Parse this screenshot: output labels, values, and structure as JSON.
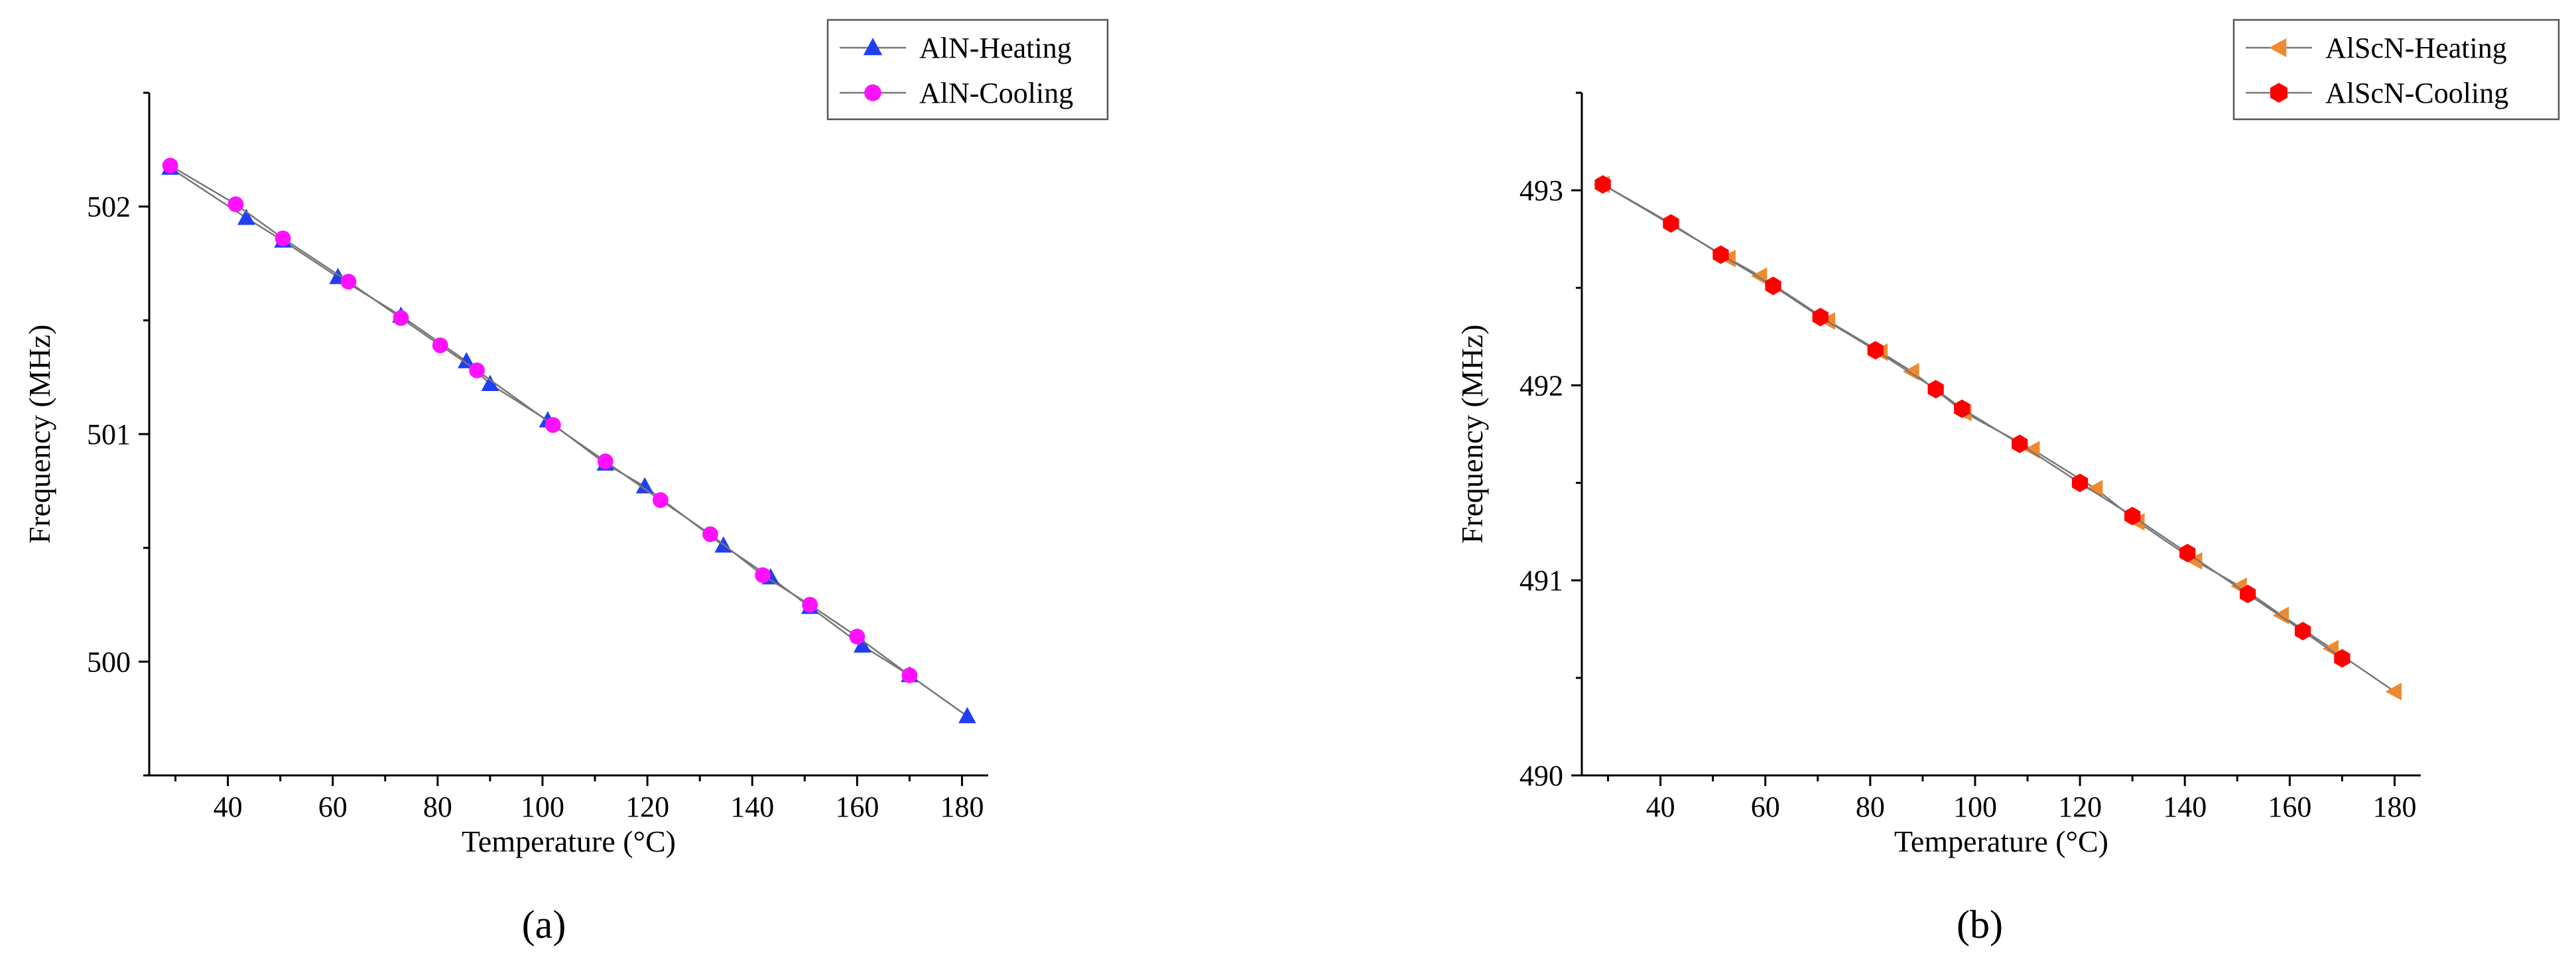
{
  "chart_data": [
    {
      "type": "line",
      "panel_label": "(a)",
      "xlabel": "Temperature (°C)",
      "ylabel": "Frequency (MHz)",
      "xlim": [
        25,
        185
      ],
      "ylim": [
        499.5,
        502.5
      ],
      "xticks": [
        40,
        60,
        80,
        100,
        120,
        140,
        160,
        180
      ],
      "yticks": [
        500,
        501,
        502
      ],
      "grid": false,
      "legend": "top-right",
      "series": [
        {
          "name": "AlN-Heating",
          "marker": "triangle-up",
          "color": "#1f3ff0",
          "x": [
            29,
            43.5,
            50.5,
            61,
            73,
            85.5,
            90,
            101,
            112,
            119.5,
            134.5,
            143.5,
            151,
            161,
            170,
            181
          ],
          "y": [
            502.17,
            501.95,
            501.85,
            501.69,
            501.52,
            501.32,
            501.22,
            501.06,
            500.87,
            500.77,
            500.51,
            500.37,
            500.24,
            500.07,
            499.94,
            499.76
          ]
        },
        {
          "name": "AlN-Cooling",
          "marker": "circle",
          "color": "#ff10ff",
          "x": [
            29,
            41.5,
            50.5,
            63,
            73,
            80.5,
            87.5,
            102,
            112,
            122.5,
            132,
            142,
            151,
            160,
            170
          ],
          "y": [
            502.18,
            502.01,
            501.86,
            501.67,
            501.51,
            501.39,
            501.28,
            501.04,
            500.88,
            500.71,
            500.56,
            500.38,
            500.25,
            500.11,
            499.94
          ]
        }
      ]
    },
    {
      "type": "line",
      "panel_label": "(b)",
      "xlabel": "Temperature (°C)",
      "ylabel": "Frequency (MHz)",
      "xlim": [
        25,
        185
      ],
      "ylim": [
        490,
        493.5
      ],
      "xticks": [
        40,
        60,
        80,
        100,
        120,
        140,
        160,
        180
      ],
      "yticks": [
        490,
        491,
        492,
        493
      ],
      "grid": false,
      "legend": "top-right",
      "series": [
        {
          "name": "AlScN-Heating",
          "marker": "triangle-left",
          "color": "#f08a30",
          "x": [
            29,
            53,
            59,
            72,
            82,
            88,
            98,
            111,
            123,
            131,
            142,
            150.5,
            158.5,
            168,
            180
          ],
          "y": [
            493.03,
            492.65,
            492.56,
            492.33,
            492.17,
            492.07,
            491.86,
            491.67,
            491.47,
            491.3,
            491.1,
            490.97,
            490.82,
            490.65,
            490.43
          ]
        },
        {
          "name": "AlScN-Cooling",
          "marker": "hexagon",
          "color": "#ff0000",
          "x": [
            29,
            42,
            51.5,
            61.5,
            70.5,
            81,
            92.5,
            97.5,
            108.5,
            120,
            130,
            140.5,
            152,
            162.5,
            170
          ],
          "y": [
            493.03,
            492.83,
            492.67,
            492.51,
            492.35,
            492.18,
            491.98,
            491.88,
            491.7,
            491.5,
            491.33,
            491.14,
            490.93,
            490.74,
            490.6
          ]
        }
      ]
    }
  ]
}
